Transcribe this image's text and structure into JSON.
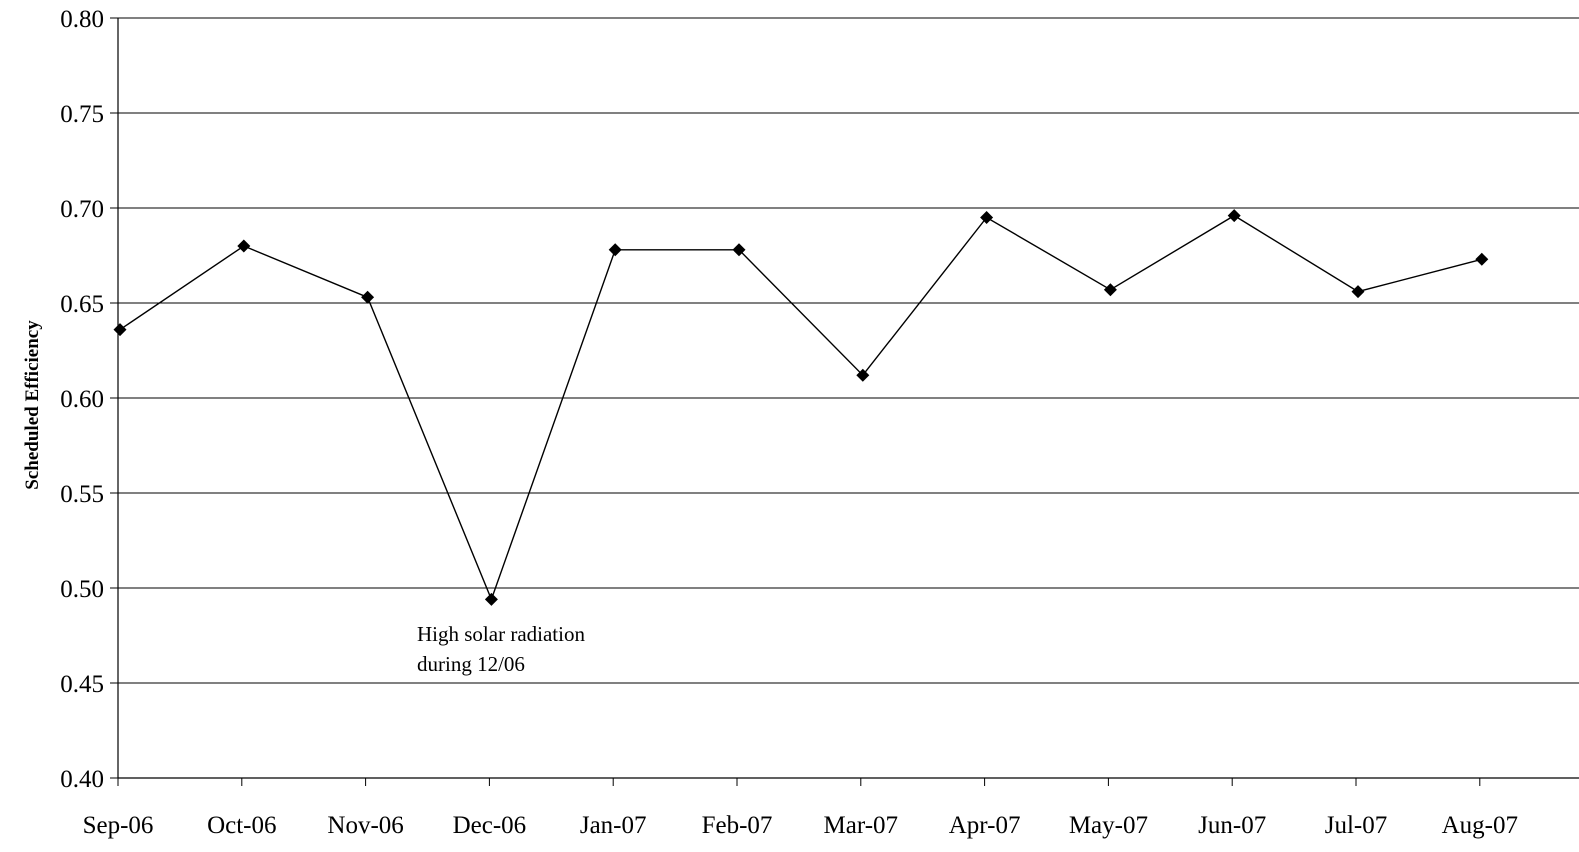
{
  "chart_data": {
    "type": "line",
    "title": "",
    "xlabel": "",
    "ylabel": "Scheduled Efficiency",
    "ylim": [
      0.4,
      0.8
    ],
    "y_ticks": [
      "0.80",
      "0.75",
      "0.70",
      "0.65",
      "0.60",
      "0.55",
      "0.50",
      "0.45",
      "0.40"
    ],
    "categories": [
      "Sep-06",
      "Oct-06",
      "Nov-06",
      "Dec-06",
      "Jan-07",
      "Feb-07",
      "Mar-07",
      "Apr-07",
      "May-07",
      "Jun-07",
      "Jul-07",
      "Aug-07"
    ],
    "series": [
      {
        "values": [
          0.636,
          0.68,
          0.653,
          0.494,
          0.678,
          0.678,
          0.612,
          0.695,
          0.657,
          0.696,
          0.656,
          0.673
        ],
        "marker": "diamond",
        "color": "#000000"
      }
    ],
    "annotation": {
      "line1": "High solar radiation",
      "line2": "during 12/06"
    },
    "grid": "horizontal",
    "legend": "none"
  }
}
